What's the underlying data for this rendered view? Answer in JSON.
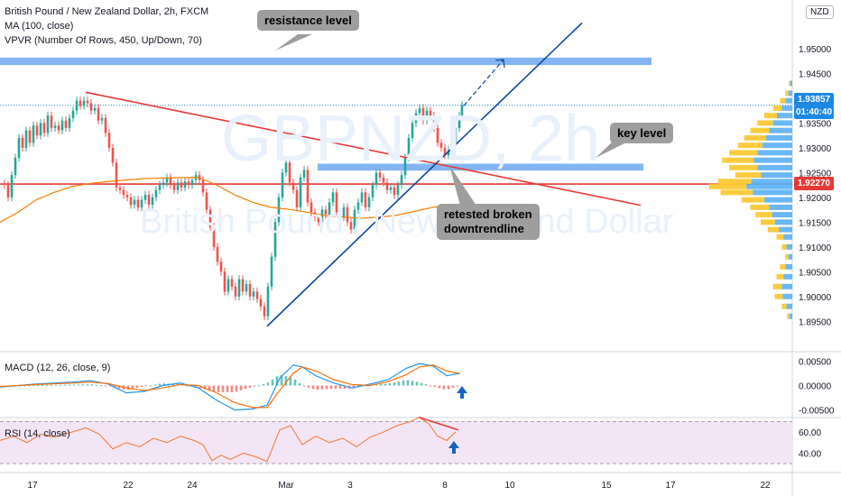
{
  "header": {
    "symbol_line": "British Pound / New Zealand Dollar, 2h, FXCM",
    "ma_line": "MA (100, close)",
    "vpvr_line": "VPVR (Number Of Rows, 450, Up/Down, 70)",
    "currency_badge": "NZD"
  },
  "watermark": {
    "ticker": "GBPNZD, 2h",
    "name": "British Pound / New Zealand Dollar"
  },
  "callouts": {
    "resistance": "resistance level",
    "key": "key level",
    "retest_line1": "retested broken",
    "retest_line2": "downtrendline"
  },
  "price_tags": {
    "last_price": "1.93857",
    "countdown": "01:40:40",
    "level_price": "1.92270"
  },
  "colors": {
    "candle_up": "#26a69a",
    "candle_down": "#ef5350",
    "ma": "#f57c00",
    "trendline_red": "#e53935",
    "trendline_blue": "#0d47a1",
    "zone": "#6fa8f0",
    "macd_line": "#2196f3",
    "signal_line": "#ff6d00",
    "rsi": "#f5742a",
    "rsi_band": "#f3e5f5",
    "tag_blue": "#1e88e5",
    "tag_red": "#e53935"
  },
  "chart_data": [
    {
      "type": "line",
      "panel": "price",
      "yticks": [
        "1.95000",
        "1.94500",
        "1.94000",
        "1.93500",
        "1.93000",
        "1.92500",
        "1.92000",
        "1.91500",
        "1.91000",
        "1.90500",
        "1.90000",
        "1.89500"
      ],
      "ylim": [
        1.8925,
        1.958
      ],
      "xticks": [
        "17",
        "22",
        "24",
        "Mar",
        "3",
        "8",
        "10",
        "15",
        "17",
        "22"
      ],
      "close_path": [
        [
          0,
          1.9228
        ],
        [
          4,
          1.9225
        ],
        [
          8,
          1.92
        ],
        [
          12,
          1.9245
        ],
        [
          16,
          1.928
        ],
        [
          20,
          1.932
        ],
        [
          24,
          1.93
        ],
        [
          28,
          1.9335
        ],
        [
          32,
          1.931
        ],
        [
          36,
          1.9345
        ],
        [
          40,
          1.9325
        ],
        [
          44,
          1.935
        ],
        [
          48,
          1.933
        ],
        [
          52,
          1.9365
        ],
        [
          56,
          1.934
        ],
        [
          60,
          1.9345
        ],
        [
          64,
          1.9335
        ],
        [
          68,
          1.9355
        ],
        [
          72,
          1.934
        ],
        [
          76,
          1.936
        ],
        [
          80,
          1.9375
        ],
        [
          84,
          1.9395
        ],
        [
          88,
          1.9385
        ],
        [
          92,
          1.9395
        ],
        [
          96,
          1.939
        ],
        [
          100,
          1.9375
        ],
        [
          104,
          1.938
        ],
        [
          108,
          1.9355
        ],
        [
          112,
          1.936
        ],
        [
          116,
          1.933
        ],
        [
          120,
          1.93
        ],
        [
          124,
          1.927
        ],
        [
          128,
          1.922
        ],
        [
          132,
          1.9215
        ],
        [
          136,
          1.9205
        ],
        [
          140,
          1.92
        ],
        [
          144,
          1.9185
        ],
        [
          148,
          1.9195
        ],
        [
          152,
          1.918
        ],
        [
          156,
          1.9195
        ],
        [
          160,
          1.9205
        ],
        [
          164,
          1.9185
        ],
        [
          168,
          1.92
        ],
        [
          172,
          1.9215
        ],
        [
          176,
          1.9225
        ],
        [
          180,
          1.923
        ],
        [
          184,
          1.924
        ],
        [
          188,
          1.9225
        ],
        [
          192,
          1.9215
        ],
        [
          196,
          1.923
        ],
        [
          200,
          1.922
        ],
        [
          204,
          1.9232
        ],
        [
          208,
          1.9225
        ],
        [
          212,
          1.9235
        ],
        [
          216,
          1.9245
        ],
        [
          220,
          1.9235
        ],
        [
          224,
          1.921
        ],
        [
          228,
          1.9175
        ],
        [
          232,
          1.914
        ],
        [
          236,
          1.91
        ],
        [
          240,
          1.907
        ],
        [
          244,
          1.905
        ],
        [
          248,
          1.901
        ],
        [
          252,
          1.9035
        ],
        [
          256,
          1.902
        ],
        [
          260,
          1.9
        ],
        [
          264,
          1.9035
        ],
        [
          268,
          1.901
        ],
        [
          272,
          1.9025
        ],
        [
          276,
          1.9
        ],
        [
          280,
          1.901
        ],
        [
          284,
          1.8995
        ],
        [
          288,
          1.898
        ],
        [
          292,
          1.896
        ],
        [
          296,
          1.902
        ],
        [
          300,
          1.908
        ],
        [
          304,
          1.915
        ],
        [
          308,
          1.92
        ],
        [
          312,
          1.925
        ],
        [
          316,
          1.927
        ],
        [
          320,
          1.923
        ],
        [
          324,
          1.9215
        ],
        [
          328,
          1.918
        ],
        [
          332,
          1.924
        ],
        [
          336,
          1.9255
        ],
        [
          340,
          1.919
        ],
        [
          344,
          1.917
        ],
        [
          348,
          1.916
        ],
        [
          352,
          1.915
        ],
        [
          356,
          1.9175
        ],
        [
          360,
          1.9165
        ],
        [
          364,
          1.919
        ],
        [
          368,
          1.921
        ],
        [
          372,
          1.917
        ],
        [
          376,
          1.916
        ],
        [
          380,
          1.918
        ],
        [
          384,
          1.915
        ],
        [
          388,
          1.9135
        ],
        [
          392,
          1.9175
        ],
        [
          396,
          1.919
        ],
        [
          400,
          1.921
        ],
        [
          404,
          1.918
        ],
        [
          408,
          1.92
        ],
        [
          412,
          1.9225
        ],
        [
          416,
          1.925
        ],
        [
          420,
          1.924
        ],
        [
          424,
          1.923
        ],
        [
          428,
          1.9215
        ],
        [
          432,
          1.922
        ],
        [
          436,
          1.9205
        ],
        [
          440,
          1.9225
        ],
        [
          444,
          1.9245
        ],
        [
          448,
          1.928
        ],
        [
          452,
          1.932
        ],
        [
          456,
          1.935
        ],
        [
          460,
          1.937
        ],
        [
          464,
          1.938
        ],
        [
          468,
          1.9355
        ],
        [
          472,
          1.9375
        ],
        [
          476,
          1.9365
        ],
        [
          480,
          1.934
        ],
        [
          484,
          1.931
        ],
        [
          488,
          1.93
        ],
        [
          492,
          1.9285
        ],
        [
          496,
          1.9295
        ],
        [
          500,
          1.931
        ],
        [
          504,
          1.934
        ],
        [
          508,
          1.9365
        ],
        [
          511,
          1.9386
        ]
      ],
      "ma_path": [
        [
          0,
          1.915
        ],
        [
          20,
          1.917
        ],
        [
          40,
          1.9195
        ],
        [
          60,
          1.921
        ],
        [
          80,
          1.9222
        ],
        [
          100,
          1.9228
        ],
        [
          120,
          1.9232
        ],
        [
          140,
          1.9235
        ],
        [
          160,
          1.9238
        ],
        [
          180,
          1.9239
        ],
        [
          200,
          1.924
        ],
        [
          220,
          1.924
        ],
        [
          240,
          1.9225
        ],
        [
          260,
          1.9205
        ],
        [
          280,
          1.919
        ],
        [
          300,
          1.918
        ],
        [
          320,
          1.9176
        ],
        [
          340,
          1.917
        ],
        [
          360,
          1.9163
        ],
        [
          380,
          1.916
        ],
        [
          400,
          1.9158
        ],
        [
          420,
          1.916
        ],
        [
          440,
          1.9164
        ],
        [
          460,
          1.9172
        ],
        [
          480,
          1.918
        ],
        [
          505,
          1.9186
        ]
      ],
      "red_trendline": [
        [
          95,
          1.9412
        ],
        [
          710,
          1.9184
        ]
      ],
      "blue_trendline": [
        [
          296,
          1.894
        ],
        [
          645,
          1.9552
        ]
      ],
      "arrow": [
        [
          514,
          1.9385
        ],
        [
          558,
          1.9478
        ]
      ],
      "resistance_zone": [
        1.9467,
        1.9482
      ],
      "key_zone": [
        1.9254,
        1.9268
      ],
      "horizontal_level": 1.9227,
      "last_price": 1.93857,
      "volume_profile": [
        [
          1.943,
          4
        ],
        [
          1.941,
          8
        ],
        [
          1.9395,
          14
        ],
        [
          1.938,
          22
        ],
        [
          1.9365,
          32
        ],
        [
          1.935,
          40
        ],
        [
          1.9335,
          48
        ],
        [
          1.932,
          55
        ],
        [
          1.9305,
          62
        ],
        [
          1.929,
          72
        ],
        [
          1.9275,
          80
        ],
        [
          1.926,
          72
        ],
        [
          1.9245,
          65
        ],
        [
          1.9232,
          85
        ],
        [
          1.9222,
          95
        ],
        [
          1.921,
          82
        ],
        [
          1.9195,
          58
        ],
        [
          1.918,
          48
        ],
        [
          1.9165,
          42
        ],
        [
          1.915,
          36
        ],
        [
          1.9135,
          28
        ],
        [
          1.912,
          18
        ],
        [
          1.91,
          12
        ],
        [
          1.908,
          8
        ],
        [
          1.906,
          14
        ],
        [
          1.904,
          18
        ],
        [
          1.902,
          22
        ],
        [
          1.9,
          20
        ],
        [
          1.898,
          12
        ],
        [
          1.896,
          6
        ]
      ]
    },
    {
      "type": "line",
      "panel": "macd",
      "title": "MACD (12, 26, close, 9)",
      "yticks": [
        "0.00500",
        "0.00000",
        "-0.00500"
      ],
      "ylim": [
        -0.006,
        0.006
      ],
      "macd": [
        [
          0,
          -0.0003
        ],
        [
          40,
          0.0003
        ],
        [
          80,
          0.0007
        ],
        [
          100,
          0.001
        ],
        [
          120,
          0.0003
        ],
        [
          140,
          -0.0015
        ],
        [
          160,
          -0.0012
        ],
        [
          180,
          0.0
        ],
        [
          200,
          0.0005
        ],
        [
          220,
          -0.0005
        ],
        [
          240,
          -0.003
        ],
        [
          260,
          -0.005
        ],
        [
          280,
          -0.0048
        ],
        [
          296,
          -0.004
        ],
        [
          310,
          0.0015
        ],
        [
          325,
          0.0042
        ],
        [
          335,
          0.0038
        ],
        [
          350,
          0.002
        ],
        [
          370,
          0.0005
        ],
        [
          390,
          -0.0005
        ],
        [
          410,
          0.0003
        ],
        [
          430,
          0.0012
        ],
        [
          450,
          0.0035
        ],
        [
          465,
          0.0045
        ],
        [
          480,
          0.004
        ],
        [
          495,
          0.002
        ],
        [
          510,
          0.0025
        ]
      ],
      "signal": [
        [
          0,
          -0.0002
        ],
        [
          40,
          0.0002
        ],
        [
          80,
          0.0005
        ],
        [
          100,
          0.0007
        ],
        [
          120,
          0.0004
        ],
        [
          140,
          -0.0005
        ],
        [
          160,
          -0.001
        ],
        [
          180,
          -0.0005
        ],
        [
          200,
          0.0002
        ],
        [
          220,
          0.0
        ],
        [
          240,
          -0.0015
        ],
        [
          260,
          -0.0035
        ],
        [
          280,
          -0.0045
        ],
        [
          296,
          -0.0045
        ],
        [
          310,
          -0.001
        ],
        [
          325,
          0.0025
        ],
        [
          335,
          0.0038
        ],
        [
          350,
          0.003
        ],
        [
          370,
          0.0012
        ],
        [
          390,
          0.0002
        ],
        [
          410,
          0.0
        ],
        [
          430,
          0.0008
        ],
        [
          450,
          0.0022
        ],
        [
          465,
          0.0038
        ],
        [
          480,
          0.0042
        ],
        [
          495,
          0.003
        ],
        [
          510,
          0.0024
        ]
      ]
    },
    {
      "type": "line",
      "panel": "rsi",
      "title": "RSI (14, close)",
      "yticks": [
        "60.00",
        "40.00"
      ],
      "ylim": [
        25,
        72
      ],
      "band": [
        30,
        70
      ],
      "rsi": [
        [
          0,
          52
        ],
        [
          15,
          56
        ],
        [
          30,
          50
        ],
        [
          45,
          58
        ],
        [
          60,
          55
        ],
        [
          80,
          60
        ],
        [
          95,
          64
        ],
        [
          110,
          58
        ],
        [
          125,
          44
        ],
        [
          140,
          50
        ],
        [
          155,
          46
        ],
        [
          170,
          54
        ],
        [
          185,
          50
        ],
        [
          200,
          56
        ],
        [
          215,
          52
        ],
        [
          225,
          48
        ],
        [
          235,
          33
        ],
        [
          245,
          38
        ],
        [
          255,
          34
        ],
        [
          270,
          40
        ],
        [
          285,
          36
        ],
        [
          296,
          32
        ],
        [
          310,
          62
        ],
        [
          322,
          66
        ],
        [
          335,
          48
        ],
        [
          350,
          56
        ],
        [
          365,
          50
        ],
        [
          380,
          54
        ],
        [
          395,
          46
        ],
        [
          410,
          55
        ],
        [
          425,
          60
        ],
        [
          440,
          66
        ],
        [
          455,
          70
        ],
        [
          465,
          74
        ],
        [
          475,
          68
        ],
        [
          485,
          56
        ],
        [
          495,
          52
        ],
        [
          505,
          60
        ]
      ]
    }
  ]
}
